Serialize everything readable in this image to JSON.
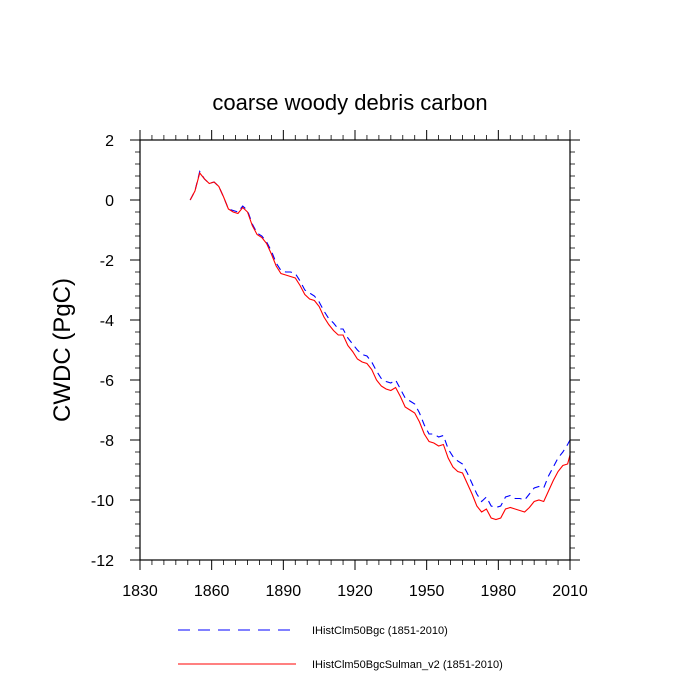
{
  "chart_data": {
    "type": "line",
    "title": "coarse woody debris carbon",
    "ylabel": "CWDC  (PgC)",
    "xlabel": "",
    "xlim": [
      1830,
      2010
    ],
    "ylim": [
      -12,
      2
    ],
    "x_ticks": [
      1830,
      1860,
      1890,
      1920,
      1950,
      1980,
      2010
    ],
    "y_ticks": [
      -12,
      -10,
      -8,
      -6,
      -4,
      -2,
      0,
      2
    ],
    "x_tick_labels": [
      "1830",
      "1860",
      "1890",
      "1920",
      "1950",
      "1980",
      "2010"
    ],
    "y_tick_labels": [
      "-12",
      "-10",
      "-8",
      "-6",
      "-4",
      "-2",
      "0",
      "2"
    ],
    "grid": false,
    "legend_position": "bottom",
    "series": [
      {
        "name": "IHistClm50Bgc (1851-2010)",
        "color": "#0000ff",
        "style": "dashed",
        "points": [
          [
            1851,
            0.0
          ],
          [
            1853,
            0.3
          ],
          [
            1855,
            0.95
          ],
          [
            1857,
            0.7
          ],
          [
            1859,
            0.55
          ],
          [
            1861,
            0.6
          ],
          [
            1863,
            0.45
          ],
          [
            1865,
            0.1
          ],
          [
            1867,
            -0.3
          ],
          [
            1869,
            -0.35
          ],
          [
            1871,
            -0.4
          ],
          [
            1873,
            -0.2
          ],
          [
            1875,
            -0.35
          ],
          [
            1877,
            -0.8
          ],
          [
            1879,
            -1.1
          ],
          [
            1881,
            -1.2
          ],
          [
            1883,
            -1.4
          ],
          [
            1885,
            -1.7
          ],
          [
            1887,
            -2.1
          ],
          [
            1889,
            -2.35
          ],
          [
            1891,
            -2.4
          ],
          [
            1893,
            -2.4
          ],
          [
            1895,
            -2.45
          ],
          [
            1897,
            -2.7
          ],
          [
            1899,
            -3.0
          ],
          [
            1901,
            -3.1
          ],
          [
            1903,
            -3.2
          ],
          [
            1905,
            -3.4
          ],
          [
            1907,
            -3.7
          ],
          [
            1909,
            -3.95
          ],
          [
            1911,
            -4.1
          ],
          [
            1913,
            -4.3
          ],
          [
            1915,
            -4.3
          ],
          [
            1917,
            -4.6
          ],
          [
            1919,
            -4.8
          ],
          [
            1921,
            -5.0
          ],
          [
            1923,
            -5.15
          ],
          [
            1925,
            -5.2
          ],
          [
            1927,
            -5.4
          ],
          [
            1929,
            -5.7
          ],
          [
            1931,
            -5.95
          ],
          [
            1933,
            -6.05
          ],
          [
            1935,
            -6.1
          ],
          [
            1937,
            -6.0
          ],
          [
            1939,
            -6.3
          ],
          [
            1941,
            -6.6
          ],
          [
            1943,
            -6.7
          ],
          [
            1945,
            -6.8
          ],
          [
            1947,
            -7.1
          ],
          [
            1949,
            -7.5
          ],
          [
            1951,
            -7.8
          ],
          [
            1953,
            -7.8
          ],
          [
            1955,
            -7.9
          ],
          [
            1957,
            -7.85
          ],
          [
            1959,
            -8.3
          ],
          [
            1961,
            -8.55
          ],
          [
            1963,
            -8.7
          ],
          [
            1965,
            -8.8
          ],
          [
            1967,
            -9.1
          ],
          [
            1969,
            -9.45
          ],
          [
            1971,
            -9.8
          ],
          [
            1973,
            -10.05
          ],
          [
            1975,
            -9.9
          ],
          [
            1977,
            -10.2
          ],
          [
            1979,
            -10.25
          ],
          [
            1981,
            -10.2
          ],
          [
            1983,
            -9.9
          ],
          [
            1985,
            -9.85
          ],
          [
            1987,
            -9.95
          ],
          [
            1989,
            -9.95
          ],
          [
            1991,
            -10.0
          ],
          [
            1993,
            -9.8
          ],
          [
            1995,
            -9.6
          ],
          [
            1997,
            -9.55
          ],
          [
            1999,
            -9.6
          ],
          [
            2001,
            -9.2
          ],
          [
            2003,
            -8.9
          ],
          [
            2005,
            -8.6
          ],
          [
            2007,
            -8.4
          ],
          [
            2009,
            -8.15
          ],
          [
            2010,
            -8.0
          ]
        ]
      },
      {
        "name": "IHistClm50BgcSulman_v2 (1851-2010)",
        "color": "#ff0000",
        "style": "solid",
        "points": [
          [
            1851,
            0.0
          ],
          [
            1853,
            0.3
          ],
          [
            1855,
            0.9
          ],
          [
            1857,
            0.7
          ],
          [
            1859,
            0.55
          ],
          [
            1861,
            0.6
          ],
          [
            1863,
            0.45
          ],
          [
            1865,
            0.1
          ],
          [
            1867,
            -0.3
          ],
          [
            1869,
            -0.4
          ],
          [
            1871,
            -0.45
          ],
          [
            1873,
            -0.25
          ],
          [
            1875,
            -0.4
          ],
          [
            1877,
            -0.85
          ],
          [
            1879,
            -1.15
          ],
          [
            1881,
            -1.25
          ],
          [
            1883,
            -1.45
          ],
          [
            1885,
            -1.8
          ],
          [
            1887,
            -2.2
          ],
          [
            1889,
            -2.45
          ],
          [
            1891,
            -2.5
          ],
          [
            1893,
            -2.55
          ],
          [
            1895,
            -2.6
          ],
          [
            1897,
            -2.85
          ],
          [
            1899,
            -3.15
          ],
          [
            1901,
            -3.3
          ],
          [
            1903,
            -3.35
          ],
          [
            1905,
            -3.55
          ],
          [
            1907,
            -3.9
          ],
          [
            1909,
            -4.15
          ],
          [
            1911,
            -4.35
          ],
          [
            1913,
            -4.5
          ],
          [
            1915,
            -4.5
          ],
          [
            1917,
            -4.85
          ],
          [
            1919,
            -5.05
          ],
          [
            1921,
            -5.3
          ],
          [
            1923,
            -5.4
          ],
          [
            1925,
            -5.45
          ],
          [
            1927,
            -5.65
          ],
          [
            1929,
            -6.0
          ],
          [
            1931,
            -6.2
          ],
          [
            1933,
            -6.3
          ],
          [
            1935,
            -6.35
          ],
          [
            1937,
            -6.25
          ],
          [
            1939,
            -6.55
          ],
          [
            1941,
            -6.9
          ],
          [
            1943,
            -7.0
          ],
          [
            1945,
            -7.1
          ],
          [
            1947,
            -7.4
          ],
          [
            1949,
            -7.8
          ],
          [
            1951,
            -8.05
          ],
          [
            1953,
            -8.1
          ],
          [
            1955,
            -8.2
          ],
          [
            1957,
            -8.15
          ],
          [
            1959,
            -8.6
          ],
          [
            1961,
            -8.9
          ],
          [
            1963,
            -9.05
          ],
          [
            1965,
            -9.1
          ],
          [
            1967,
            -9.45
          ],
          [
            1969,
            -9.8
          ],
          [
            1971,
            -10.2
          ],
          [
            1973,
            -10.4
          ],
          [
            1975,
            -10.3
          ],
          [
            1977,
            -10.6
          ],
          [
            1979,
            -10.65
          ],
          [
            1981,
            -10.6
          ],
          [
            1983,
            -10.3
          ],
          [
            1985,
            -10.25
          ],
          [
            1987,
            -10.3
          ],
          [
            1989,
            -10.35
          ],
          [
            1991,
            -10.4
          ],
          [
            1993,
            -10.25
          ],
          [
            1995,
            -10.05
          ],
          [
            1997,
            -10.0
          ],
          [
            1999,
            -10.05
          ],
          [
            2001,
            -9.7
          ],
          [
            2003,
            -9.35
          ],
          [
            2005,
            -9.05
          ],
          [
            2007,
            -8.85
          ],
          [
            2009,
            -8.8
          ],
          [
            2010,
            -8.5
          ]
        ]
      }
    ]
  }
}
